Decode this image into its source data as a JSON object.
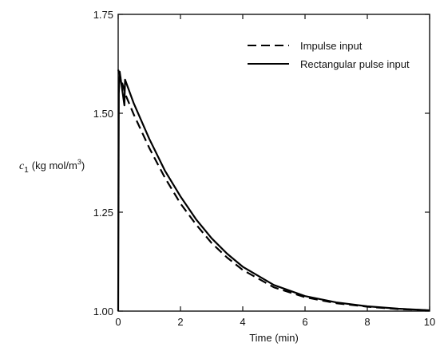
{
  "chart_data": {
    "type": "line",
    "xlabel": "Time (min)",
    "ylabel": {
      "symbol": "c",
      "subscript": "1",
      "units": "(kg mol/m",
      "exponent": "3",
      "close": ")"
    },
    "xlim": [
      0,
      10
    ],
    "ylim": [
      1.0,
      1.75
    ],
    "x_ticks": [
      "0",
      "2",
      "4",
      "6",
      "8",
      "10"
    ],
    "y_ticks": [
      "1.00",
      "1.25",
      "1.50",
      "1.75"
    ],
    "grid": false,
    "legend_position": "top-right",
    "series": [
      {
        "name": "Impulse input",
        "style": "dashed",
        "color": "#000000",
        "points": [
          [
            0,
            1.61
          ],
          [
            0.25,
            1.544
          ],
          [
            0.5,
            1.497
          ],
          [
            1.0,
            1.412
          ],
          [
            1.5,
            1.337
          ],
          [
            2.0,
            1.272
          ],
          [
            2.5,
            1.219
          ],
          [
            3.0,
            1.172
          ],
          [
            3.5,
            1.135
          ],
          [
            4.0,
            1.104
          ],
          [
            5.0,
            1.06
          ],
          [
            6.0,
            1.035
          ],
          [
            7.0,
            1.02
          ],
          [
            8.0,
            1.011
          ],
          [
            9.0,
            1.005
          ],
          [
            10.0,
            1.002
          ]
        ]
      },
      {
        "name": "Rectangular pulse input",
        "style": "solid",
        "color": "#000000",
        "points": [
          [
            0,
            1.0
          ],
          [
            0.02,
            1.55
          ],
          [
            0.05,
            1.605
          ],
          [
            0.2,
            1.52
          ],
          [
            0.22,
            1.585
          ],
          [
            0.5,
            1.525
          ],
          [
            1.0,
            1.435
          ],
          [
            1.5,
            1.355
          ],
          [
            2.0,
            1.29
          ],
          [
            2.5,
            1.232
          ],
          [
            3.0,
            1.184
          ],
          [
            3.5,
            1.145
          ],
          [
            4.0,
            1.112
          ],
          [
            5.0,
            1.066
          ],
          [
            6.0,
            1.038
          ],
          [
            7.0,
            1.022
          ],
          [
            8.0,
            1.012
          ],
          [
            9.0,
            1.006
          ],
          [
            10.0,
            1.002
          ]
        ]
      }
    ]
  }
}
